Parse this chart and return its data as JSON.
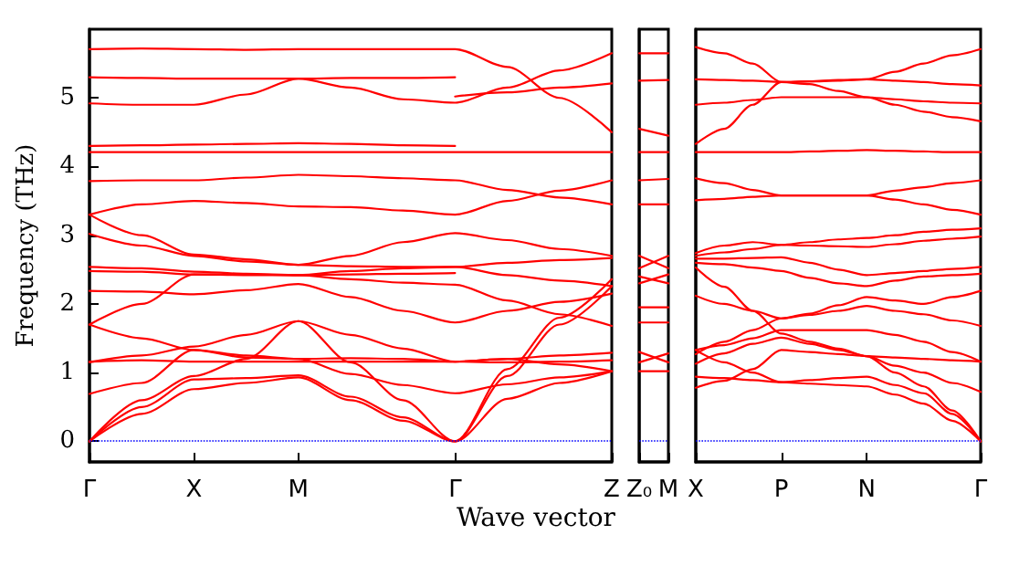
{
  "chart_data": [
    {
      "type": "line",
      "ylabel": "Frequency (THz)",
      "xlabel": "Wave vector",
      "marker": "none",
      "categories": [
        "Γ",
        null,
        "X",
        null,
        "M",
        null,
        null,
        "Γ",
        null,
        null,
        "Z"
      ],
      "ylim": [
        -0.3,
        6.0
      ],
      "yticks": [
        0,
        1,
        2,
        3,
        4,
        5
      ],
      "ref_lines": [
        {
          "axis": "y",
          "value": 0,
          "color": "#0000ff",
          "line_style": "dotted"
        }
      ],
      "series": [
        {
          "color": "#ff0000",
          "values": [
            5.71,
            5.72,
            5.71,
            5.7,
            5.71,
            5.71,
            5.71,
            5.71,
            5.45,
            5.0,
            4.5
          ]
        },
        {
          "color": "#ff0000",
          "values": [
            5.3,
            5.29,
            5.28,
            5.28,
            5.28,
            5.29,
            5.29,
            5.3,
            null,
            null,
            null
          ]
        },
        {
          "color": "#ff0000",
          "values": [
            4.92,
            4.9,
            4.9,
            5.05,
            5.28,
            5.15,
            4.98,
            4.93,
            5.15,
            5.4,
            5.65
          ]
        },
        {
          "color": "#ff0000",
          "values": [
            null,
            null,
            null,
            null,
            null,
            null,
            null,
            5.02,
            5.08,
            5.15,
            5.21
          ]
        },
        {
          "color": "#ff0000",
          "values": [
            4.3,
            4.31,
            4.32,
            4.33,
            4.34,
            4.33,
            4.31,
            4.3,
            null,
            null,
            null
          ]
        },
        {
          "color": "#ff0000",
          "values": [
            4.21,
            4.21,
            4.21,
            4.21,
            4.21,
            4.21,
            4.21,
            4.21,
            4.21,
            4.21,
            4.21
          ]
        },
        {
          "color": "#ff0000",
          "values": [
            3.79,
            3.8,
            3.8,
            3.84,
            3.88,
            3.86,
            3.83,
            3.8,
            3.66,
            3.55,
            3.45
          ]
        },
        {
          "color": "#ff0000",
          "values": [
            3.3,
            3.45,
            3.5,
            3.47,
            3.42,
            3.41,
            3.36,
            3.3,
            3.5,
            3.65,
            3.8
          ]
        },
        {
          "color": "#ff0000",
          "values": [
            3.3,
            3.0,
            2.72,
            2.65,
            2.57,
            2.7,
            2.9,
            3.03,
            2.93,
            2.8,
            2.7
          ]
        },
        {
          "color": "#ff0000",
          "values": [
            3.02,
            2.85,
            2.7,
            2.62,
            2.57,
            2.55,
            2.54,
            2.54,
            2.6,
            2.64,
            2.67
          ]
        },
        {
          "color": "#ff0000",
          "values": [
            2.54,
            2.52,
            2.47,
            2.44,
            2.42,
            2.48,
            2.52,
            2.54,
            2.42,
            2.34,
            2.26
          ]
        },
        {
          "color": "#ff0000",
          "values": [
            2.48,
            2.47,
            2.43,
            2.42,
            2.42,
            2.43,
            2.44,
            2.45,
            null,
            null,
            null
          ]
        },
        {
          "color": "#ff0000",
          "values": [
            2.19,
            2.18,
            2.14,
            2.2,
            2.29,
            2.1,
            1.9,
            1.73,
            1.9,
            2.03,
            2.15
          ]
        },
        {
          "color": "#ff0000",
          "values": [
            1.7,
            2.0,
            2.43,
            2.43,
            2.42,
            2.36,
            2.31,
            2.28,
            2.05,
            1.85,
            1.68
          ]
        },
        {
          "color": "#ff0000",
          "values": [
            1.7,
            1.5,
            1.33,
            1.22,
            1.2,
            1.21,
            1.2,
            1.16,
            1.2,
            1.25,
            1.29
          ]
        },
        {
          "color": "#ff0000",
          "values": [
            1.16,
            1.18,
            1.16,
            1.16,
            1.16,
            1.16,
            1.16,
            1.16,
            1.15,
            1.16,
            1.18
          ]
        },
        {
          "color": "#ff0000",
          "values": [
            1.15,
            1.25,
            1.38,
            1.55,
            1.75,
            1.55,
            1.35,
            1.16,
            1.2,
            1.12,
            1.02
          ]
        },
        {
          "color": "#ff0000",
          "values": [
            0.69,
            0.85,
            1.33,
            1.25,
            1.2,
            0.98,
            0.82,
            0.7,
            0.83,
            0.93,
            1.02
          ]
        },
        {
          "color": "#ff0000",
          "values": [
            0,
            0.6,
            0.95,
            1.2,
            1.75,
            1.15,
            0.6,
            0,
            1.05,
            1.8,
            2.36
          ]
        },
        {
          "color": "#ff0000",
          "values": [
            0,
            0.5,
            0.9,
            0.92,
            0.96,
            0.65,
            0.35,
            0,
            0.95,
            1.7,
            2.26
          ]
        },
        {
          "color": "#ff0000",
          "values": [
            0,
            0.4,
            0.76,
            0.85,
            0.93,
            0.6,
            0.3,
            0,
            0.62,
            0.85,
            1.02
          ]
        }
      ]
    },
    {
      "type": "line",
      "tick_labels": "x",
      "marker": "none",
      "categories": [
        "Z₀",
        "M"
      ],
      "ylim": [
        -0.3,
        6.0
      ],
      "yticks": [
        0,
        1,
        2,
        3,
        4,
        5
      ],
      "ref_lines": [
        {
          "axis": "y",
          "value": 0,
          "color": "#0000ff",
          "line_style": "dotted"
        }
      ],
      "series": [
        {
          "color": "#ff0000",
          "values": [
            5.65,
            5.65
          ]
        },
        {
          "color": "#ff0000",
          "values": [
            5.25,
            5.26
          ]
        },
        {
          "color": "#ff0000",
          "values": [
            4.55,
            4.45
          ]
        },
        {
          "color": "#ff0000",
          "values": [
            4.21,
            4.21
          ]
        },
        {
          "color": "#ff0000",
          "values": [
            3.8,
            3.82
          ]
        },
        {
          "color": "#ff0000",
          "values": [
            3.45,
            3.45
          ]
        },
        {
          "color": "#ff0000",
          "values": [
            2.7,
            2.52
          ]
        },
        {
          "color": "#ff0000",
          "values": [
            2.52,
            2.7
          ]
        },
        {
          "color": "#ff0000",
          "values": [
            2.4,
            2.3
          ]
        },
        {
          "color": "#ff0000",
          "values": [
            2.3,
            2.43
          ]
        },
        {
          "color": "#ff0000",
          "values": [
            1.95,
            1.95
          ]
        },
        {
          "color": "#ff0000",
          "values": [
            1.73,
            1.73
          ]
        },
        {
          "color": "#ff0000",
          "values": [
            1.3,
            1.15
          ]
        },
        {
          "color": "#ff0000",
          "values": [
            1.15,
            1.28
          ]
        },
        {
          "color": "#ff0000",
          "values": [
            1.02,
            1.02
          ]
        }
      ]
    },
    {
      "type": "line",
      "tick_labels": "x",
      "marker": "none",
      "categories": [
        "X",
        null,
        null,
        "P",
        null,
        null,
        "N",
        null,
        null,
        null,
        "Γ"
      ],
      "ylim": [
        -0.3,
        6.0
      ],
      "yticks": [
        0,
        1,
        2,
        3,
        4,
        5
      ],
      "ref_lines": [
        {
          "axis": "y",
          "value": 0,
          "color": "#0000ff",
          "line_style": "dotted"
        }
      ],
      "series": [
        {
          "color": "#ff0000",
          "values": [
            5.74,
            5.65,
            5.5,
            5.23,
            5.24,
            5.26,
            5.27,
            5.38,
            5.5,
            5.62,
            5.71
          ]
        },
        {
          "color": "#ff0000",
          "values": [
            5.27,
            5.26,
            5.25,
            5.23,
            5.24,
            5.25,
            5.27,
            5.25,
            5.23,
            5.2,
            5.18
          ]
        },
        {
          "color": "#ff0000",
          "values": [
            4.9,
            4.93,
            4.97,
            5.01,
            5.01,
            5.01,
            5.01,
            4.98,
            4.95,
            4.93,
            4.92
          ]
        },
        {
          "color": "#ff0000",
          "values": [
            4.33,
            4.55,
            4.9,
            5.23,
            5.2,
            5.1,
            5.01,
            4.9,
            4.8,
            4.72,
            4.66
          ]
        },
        {
          "color": "#ff0000",
          "values": [
            4.21,
            4.21,
            4.21,
            4.21,
            4.22,
            4.23,
            4.24,
            4.23,
            4.22,
            4.21,
            4.21
          ]
        },
        {
          "color": "#ff0000",
          "values": [
            3.83,
            3.76,
            3.66,
            3.58,
            3.58,
            3.58,
            3.58,
            3.65,
            3.7,
            3.76,
            3.8
          ]
        },
        {
          "color": "#ff0000",
          "values": [
            3.51,
            3.53,
            3.56,
            3.58,
            3.58,
            3.58,
            3.58,
            3.52,
            3.45,
            3.37,
            3.3
          ]
        },
        {
          "color": "#ff0000",
          "values": [
            2.74,
            2.85,
            2.9,
            2.86,
            2.9,
            2.94,
            2.96,
            3.0,
            3.05,
            3.08,
            3.1
          ]
        },
        {
          "color": "#ff0000",
          "values": [
            2.7,
            2.75,
            2.8,
            2.86,
            2.85,
            2.84,
            2.83,
            2.87,
            2.92,
            2.95,
            2.98
          ]
        },
        {
          "color": "#ff0000",
          "values": [
            2.66,
            2.66,
            2.67,
            2.68,
            2.6,
            2.5,
            2.42,
            2.45,
            2.48,
            2.51,
            2.54
          ]
        },
        {
          "color": "#ff0000",
          "values": [
            2.53,
            2.25,
            1.9,
            1.57,
            1.45,
            1.35,
            1.24,
            1.22,
            1.2,
            1.18,
            1.16
          ]
        },
        {
          "color": "#ff0000",
          "values": [
            2.6,
            2.58,
            2.53,
            2.48,
            2.38,
            2.3,
            2.26,
            2.34,
            2.4,
            2.42,
            2.44
          ]
        },
        {
          "color": "#ff0000",
          "values": [
            2.12,
            2.0,
            1.9,
            1.79,
            1.86,
            1.98,
            2.1,
            2.05,
            2.0,
            2.1,
            2.19
          ]
        },
        {
          "color": "#ff0000",
          "values": [
            1.27,
            1.45,
            1.62,
            1.79,
            1.84,
            1.9,
            1.97,
            1.9,
            1.85,
            1.76,
            1.68
          ]
        },
        {
          "color": "#ff0000",
          "values": [
            1.33,
            1.4,
            1.5,
            1.62,
            1.62,
            1.62,
            1.62,
            1.55,
            1.45,
            1.3,
            1.16
          ]
        },
        {
          "color": "#ff0000",
          "values": [
            1.13,
            1.28,
            1.42,
            1.51,
            1.42,
            1.33,
            1.24,
            1.1,
            1.0,
            0.85,
            0.72
          ]
        },
        {
          "color": "#ff0000",
          "values": [
            0.94,
            0.92,
            0.89,
            0.86,
            0.89,
            0.92,
            0.94,
            0.82,
            0.7,
            0.4,
            0
          ]
        },
        {
          "color": "#ff0000",
          "values": [
            0.78,
            0.88,
            1.05,
            1.33,
            1.3,
            1.27,
            1.24,
            1.0,
            0.8,
            0.45,
            0
          ]
        },
        {
          "color": "#ff0000",
          "values": [
            1.33,
            1.15,
            1.0,
            0.86,
            0.84,
            0.82,
            0.8,
            0.68,
            0.55,
            0.3,
            0
          ]
        }
      ]
    }
  ]
}
